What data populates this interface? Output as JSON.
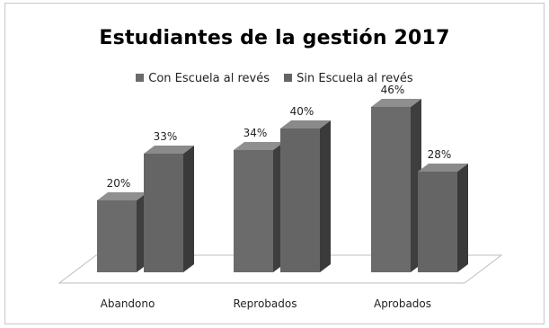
{
  "colors": {
    "series1_front": "#6b6b6b",
    "series1_side": "#3e3e3e",
    "series1_top": "#8f8f8f",
    "series2_front": "#656565",
    "series2_side": "#3a3a3a",
    "series2_top": "#8a8a8a",
    "floor": "#bdbdbd"
  },
  "chart_data": {
    "type": "bar",
    "title": "Estudiantes de la gestión 2017",
    "xlabel": "",
    "ylabel": "",
    "categories": [
      "Abandono",
      "Reprobados",
      "Aprobados"
    ],
    "series": [
      {
        "name": "Con Escuela al revés",
        "values": [
          20,
          34,
          46
        ],
        "labels": [
          "20%",
          "34%",
          "46%"
        ]
      },
      {
        "name": "Sin Escuela al revés",
        "values": [
          33,
          40,
          28
        ],
        "labels": [
          "33%",
          "40%",
          "28%"
        ]
      }
    ],
    "ylim": [
      0,
      50
    ],
    "grid": false,
    "legend_position": "top",
    "style": "3d-column"
  }
}
